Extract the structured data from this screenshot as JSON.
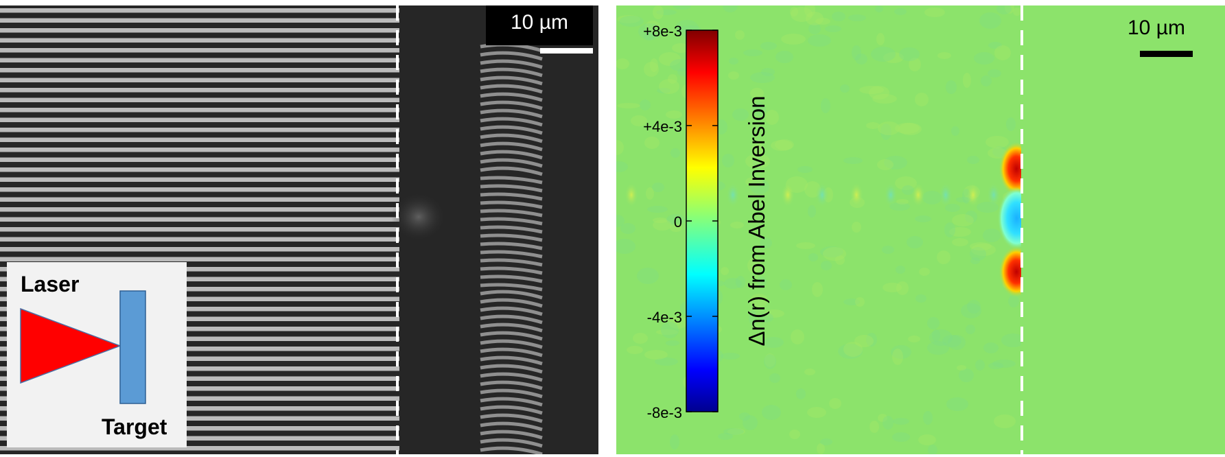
{
  "left_panel": {
    "scalebar_label": "10 µm",
    "inset": {
      "laser_label": "Laser",
      "target_label": "Target"
    }
  },
  "right_panel": {
    "scalebar_label": "10 µm",
    "colorbar": {
      "label": "Δn(r) from Abel Inversion",
      "ticks": [
        "+8e-3",
        "+4e-3",
        "0",
        "-4e-3",
        "-8e-3"
      ],
      "colormap": "jet"
    }
  },
  "colors": {
    "background_map": "#8ce36b",
    "fringe_light": "#e6e6e6",
    "fringe_dark": "#2a2a2a",
    "laser": "#ff0000",
    "target": "#5b9bd5",
    "dashed_line": "#ffffff"
  }
}
